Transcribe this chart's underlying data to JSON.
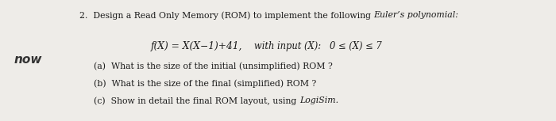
{
  "bg_color": "#eeece8",
  "text_color": "#1a1a1a",
  "fs_main": 7.8,
  "fs_formula": 8.8,
  "fs_hand": 11,
  "line1_regular": "2.  Design a Read Only Memory (ROM) to implement the following ",
  "line1_italic": "Euler’s polynomial:",
  "formula_regular": "f(X) = X(X−1)+41,",
  "formula_suffix": "   with input (X):   0 ≤ (X) ≤ 7",
  "sub_a": "(a)  What is the size of the initial (unsimplified) ROM ?",
  "sub_b": "(b)  What is the size of the final (simplified) ROM ?",
  "sub_c_normal": "(c)  Show in detail the final ROM layout, using ",
  "sub_c_italic": "LogiSim.",
  "handwriting": "now"
}
